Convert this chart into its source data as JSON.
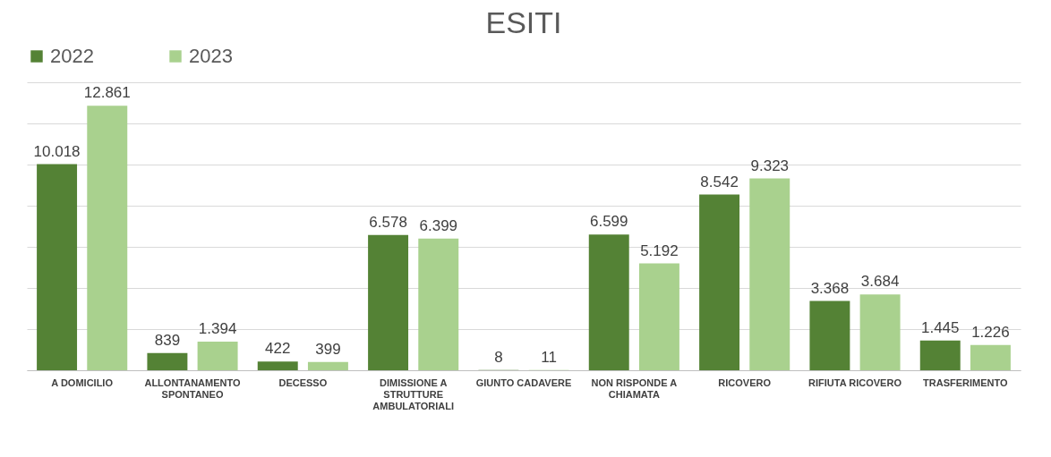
{
  "chart_data": {
    "type": "bar",
    "title": "ESITI",
    "categories": [
      "A DOMICILIO",
      "ALLONTANAMENTO SPONTANEO",
      "DECESSO",
      "DIMISSIONE A STRUTTURE AMBULATORIALI",
      "GIUNTO CADAVERE",
      "NON RISPONDE A CHIAMATA",
      "RICOVERO",
      "RIFIUTA RICOVERO",
      "TRASFERIMENTO"
    ],
    "series": [
      {
        "name": "2022",
        "color": "#548235",
        "values": [
          10018,
          839,
          422,
          6578,
          8,
          6599,
          8542,
          3368,
          1445
        ],
        "value_labels": [
          "10.018",
          "839",
          "422",
          "6.578",
          "8",
          "6.599",
          "8.542",
          "3.368",
          "1.445"
        ]
      },
      {
        "name": "2023",
        "color": "#a9d18e",
        "values": [
          12861,
          1394,
          399,
          6399,
          11,
          5192,
          9323,
          3684,
          1226
        ],
        "value_labels": [
          "12.861",
          "1.394",
          "399",
          "6.399",
          "11",
          "5.192",
          "9.323",
          "3.684",
          "1.226"
        ]
      }
    ],
    "ylim": [
      0,
      14000
    ],
    "yticks": [
      {
        "value": 0,
        "label": null
      },
      {
        "value": 2000,
        "label": null
      },
      {
        "value": 4000,
        "label": null
      },
      {
        "value": 6000,
        "label": null
      },
      {
        "value": 8000,
        "label": null
      },
      {
        "value": 10000,
        "label": null
      },
      {
        "value": 12000,
        "label": null
      },
      {
        "value": 14000,
        "label": null
      }
    ],
    "tick_labels": "x",
    "grid": "y",
    "legend": "top"
  }
}
